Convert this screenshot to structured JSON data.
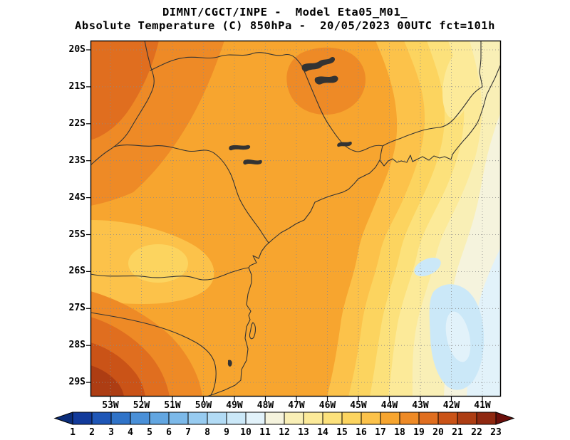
{
  "header": {
    "title_line1": "DIMNT/CGCT/INPE -  Model Eta05_M01_",
    "title_line2": "Absolute Temperature (C) 850hPa -  20/05/2023 00UTC fct=101h"
  },
  "map_colors": {
    "geo_line": "#333333",
    "grid_line": "#8a8a8a",
    "frame": "#000000"
  },
  "colorbar": {
    "labels": [
      "1",
      "2",
      "3",
      "4",
      "5",
      "6",
      "7",
      "8",
      "9",
      "10",
      "11",
      "12",
      "13",
      "14",
      "15",
      "16",
      "17",
      "18",
      "19",
      "20",
      "21",
      "22",
      "23"
    ],
    "colors": [
      "#123a9b",
      "#1e56b7",
      "#2f73c8",
      "#4a90d8",
      "#62a6e1",
      "#7cb9e9",
      "#97cbf0",
      "#b2dbf5",
      "#cbe8f8",
      "#e2f2fa",
      "#f5f3dd",
      "#f9efb6",
      "#fcea99",
      "#fce17b",
      "#fcd45f",
      "#fcc24a",
      "#f7a52f",
      "#ee8a26",
      "#e06e1f",
      "#ca5317",
      "#ad3d13",
      "#8f2810"
    ],
    "arrow_low_color": "#0b2d7a",
    "arrow_high_color": "#6b0f0b"
  },
  "chart_data": {
    "type": "heatmap",
    "title": "Absolute Temperature (C) 850hPa",
    "institution": "DIMNT/CGCT/INPE",
    "model": "Eta05_M01_",
    "valid_time": "20/05/2023 00UTC",
    "forecast": "fct=101h",
    "x_ticks": [
      "53W",
      "52W",
      "51W",
      "50W",
      "49W",
      "48W",
      "47W",
      "46W",
      "45W",
      "44W",
      "43W",
      "42W",
      "41W"
    ],
    "y_ticks": [
      "20S",
      "21S",
      "22S",
      "23S",
      "24S",
      "25S",
      "26S",
      "27S",
      "28S",
      "29S"
    ],
    "color_scale_c": [
      1,
      2,
      3,
      4,
      5,
      6,
      7,
      8,
      9,
      10,
      11,
      12,
      13,
      14,
      15,
      16,
      17,
      18,
      19,
      20,
      21,
      22,
      23
    ],
    "legend_position": "bottom",
    "grid": "dotted lat/lon graticule every 1 degree",
    "region": "Southeastern Brazil and adjacent Atlantic (53W-41W, 20S-29S)",
    "field_summary": [
      {
        "region": "northwest / west edge (52-53W, 20-23S)",
        "approx_temp_c": 19
      },
      {
        "region": "southwest corner core (52-53W, 28-29S)",
        "approx_temp_c": 21
      },
      {
        "region": "west-central interior (49-52W)",
        "approx_temp_c": 17.5
      },
      {
        "region": "top-center highlands pocket (46-47.5W, 20-21.5S)",
        "approx_temp_c": 18.5
      },
      {
        "region": "central band (47-49W)",
        "approx_temp_c": 15.5
      },
      {
        "region": "eastern interior (44-46W)",
        "approx_temp_c": 13.5
      },
      {
        "region": "coastal Rio de Janeiro / top-right corner",
        "approx_temp_c": 12.5
      },
      {
        "region": "southeast Atlantic offshore",
        "approx_temp_c": 10.5
      },
      {
        "region": "offshore cold pockets (42-44W, 26-28.5S)",
        "approx_temp_c": 9.5
      }
    ]
  }
}
